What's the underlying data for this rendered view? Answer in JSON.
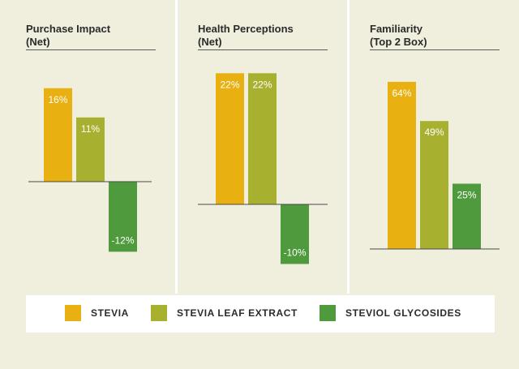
{
  "colors": {
    "background": "#f0efde",
    "stevia": "#e8b010",
    "stevia_leaf_extract": "#a8b030",
    "steviol_glycosides": "#4e9a3c"
  },
  "legend": [
    {
      "label": "STEVIA",
      "color_key": "stevia"
    },
    {
      "label": "STEVIA LEAF EXTRACT",
      "color_key": "stevia_leaf_extract"
    },
    {
      "label": "STEVIOL GLYCOSIDES",
      "color_key": "steviol_glycosides"
    }
  ],
  "chart_data": [
    {
      "type": "bar",
      "title_line1": "Purchase Impact",
      "title_line2": "(Net)",
      "categories": [
        "STEVIA",
        "STEVIA LEAF EXTRACT",
        "STEVIOL GLYCOSIDES"
      ],
      "values": [
        16,
        11,
        -12
      ],
      "value_labels": [
        "16%",
        "11%",
        "-12%"
      ],
      "ylim": [
        -12,
        16
      ],
      "grid": false
    },
    {
      "type": "bar",
      "title_line1": "Health Perceptions",
      "title_line2": "(Net)",
      "categories": [
        "STEVIA",
        "STEVIA LEAF EXTRACT",
        "STEVIOL GLYCOSIDES"
      ],
      "values": [
        22,
        22,
        -10
      ],
      "value_labels": [
        "22%",
        "22%",
        "-10%"
      ],
      "ylim": [
        -10,
        22
      ],
      "grid": false
    },
    {
      "type": "bar",
      "title_line1": "Familiarity",
      "title_line2": "(Top 2 Box)",
      "categories": [
        "STEVIA",
        "STEVIA LEAF EXTRACT",
        "STEVIOL GLYCOSIDES"
      ],
      "values": [
        64,
        49,
        25
      ],
      "value_labels": [
        "64%",
        "49%",
        "25%"
      ],
      "ylim": [
        0,
        64
      ],
      "grid": false
    }
  ]
}
